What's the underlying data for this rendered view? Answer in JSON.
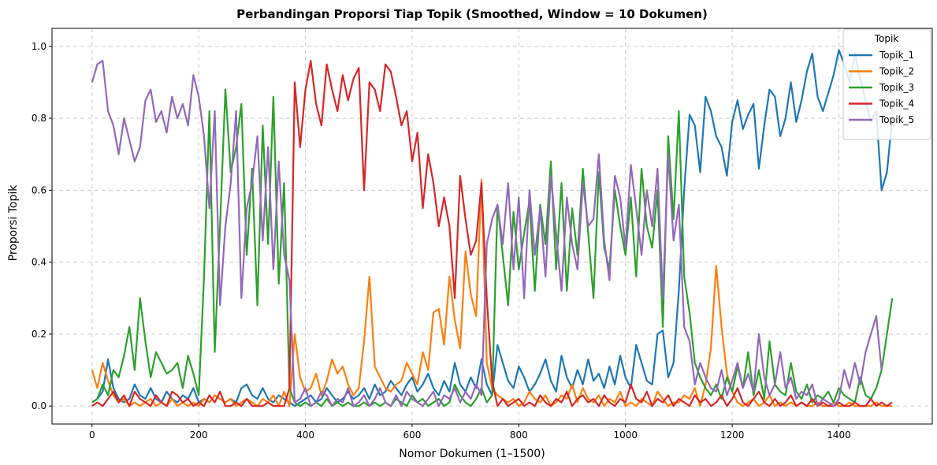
{
  "chart_data": {
    "type": "line",
    "title": "Perbandingan Proporsi Tiap Topik (Smoothed, Window = 10 Dokumen)",
    "xlabel": "Nomor Dokumen (1–1500)",
    "ylabel": "Proporsi Topik",
    "xlim": [
      -75,
      1575
    ],
    "ylim": [
      -0.05,
      1.05
    ],
    "xticks": [
      0,
      200,
      400,
      600,
      800,
      1000,
      1200,
      1400
    ],
    "yticks": [
      0.0,
      0.2,
      0.4,
      0.6,
      0.8,
      1.0
    ],
    "xtick_labels": [
      "0",
      "200",
      "400",
      "600",
      "800",
      "1000",
      "1200",
      "1400"
    ],
    "ytick_labels": [
      "0.0",
      "0.2",
      "0.4",
      "0.6",
      "0.8",
      "1.0"
    ],
    "grid": true,
    "legend_title": "Topik",
    "legend_position": "top-right",
    "sample_step": 10,
    "series": [
      {
        "name": "Topik_1",
        "color": "#1f77b4",
        "values": [
          0.01,
          0.02,
          0.04,
          0.13,
          0.05,
          0.02,
          0.01,
          0.02,
          0.06,
          0.03,
          0.02,
          0.05,
          0.02,
          0.01,
          0.04,
          0.02,
          0.01,
          0.03,
          0.02,
          0.05,
          0.01,
          0.02,
          0.01,
          0.03,
          0.02,
          0.01,
          0.02,
          0.01,
          0.05,
          0.06,
          0.03,
          0.02,
          0.05,
          0.02,
          0.01,
          0.03,
          0.02,
          0.01,
          0.0,
          0.01,
          0.02,
          0.03,
          0.01,
          0.02,
          0.05,
          0.03,
          0.01,
          0.02,
          0.04,
          0.02,
          0.03,
          0.05,
          0.02,
          0.06,
          0.03,
          0.04,
          0.07,
          0.05,
          0.03,
          0.06,
          0.08,
          0.04,
          0.06,
          0.09,
          0.05,
          0.03,
          0.07,
          0.04,
          0.12,
          0.06,
          0.04,
          0.08,
          0.05,
          0.13,
          0.06,
          0.03,
          0.17,
          0.12,
          0.07,
          0.05,
          0.11,
          0.08,
          0.04,
          0.06,
          0.09,
          0.13,
          0.07,
          0.04,
          0.14,
          0.08,
          0.05,
          0.1,
          0.06,
          0.13,
          0.07,
          0.09,
          0.05,
          0.11,
          0.06,
          0.14,
          0.08,
          0.05,
          0.17,
          0.12,
          0.07,
          0.06,
          0.2,
          0.21,
          0.08,
          0.12,
          0.32,
          0.6,
          0.81,
          0.78,
          0.65,
          0.86,
          0.82,
          0.75,
          0.72,
          0.64,
          0.79,
          0.85,
          0.77,
          0.81,
          0.84,
          0.66,
          0.78,
          0.88,
          0.86,
          0.75,
          0.8,
          0.9,
          0.79,
          0.85,
          0.93,
          0.98,
          0.86,
          0.82,
          0.87,
          0.92,
          0.99,
          0.95,
          0.9,
          0.98,
          0.91,
          0.85,
          0.79,
          0.82,
          0.6,
          0.65,
          0.8
        ]
      },
      {
        "name": "Topik_2",
        "color": "#ff7f0e",
        "values": [
          0.1,
          0.05,
          0.12,
          0.07,
          0.03,
          0.01,
          0.02,
          0.0,
          0.01,
          0.0,
          0.01,
          0.02,
          0.0,
          0.01,
          0.0,
          0.02,
          0.0,
          0.01,
          0.0,
          0.01,
          0.0,
          0.02,
          0.01,
          0.03,
          0.02,
          0.01,
          0.02,
          0.0,
          0.01,
          0.02,
          0.01,
          0.0,
          0.02,
          0.01,
          0.03,
          0.0,
          0.04,
          0.0,
          0.2,
          0.08,
          0.04,
          0.05,
          0.09,
          0.03,
          0.07,
          0.13,
          0.09,
          0.11,
          0.06,
          0.03,
          0.05,
          0.18,
          0.36,
          0.11,
          0.08,
          0.05,
          0.04,
          0.06,
          0.07,
          0.12,
          0.09,
          0.06,
          0.15,
          0.1,
          0.26,
          0.27,
          0.17,
          0.36,
          0.24,
          0.16,
          0.43,
          0.31,
          0.25,
          0.63,
          0.12,
          0.05,
          0.03,
          0.02,
          0.01,
          0.02,
          0.0,
          0.01,
          0.04,
          0.02,
          0.01,
          0.03,
          0.0,
          0.01,
          0.03,
          0.02,
          0.06,
          0.01,
          0.05,
          0.02,
          0.01,
          0.03,
          0.0,
          0.02,
          0.01,
          0.04,
          0.0,
          0.01,
          0.0,
          0.02,
          0.01,
          0.0,
          0.04,
          0.02,
          0.0,
          0.01,
          0.01,
          0.03,
          0.02,
          0.05,
          0.0,
          0.06,
          0.16,
          0.39,
          0.22,
          0.09,
          0.04,
          0.01,
          0.0,
          0.01,
          0.02,
          0.0,
          0.01,
          0.03,
          0.0,
          0.01,
          0.0,
          0.01,
          0.0,
          0.01,
          0.0,
          0.0,
          0.01,
          0.0,
          0.0,
          0.01,
          0.0,
          0.0,
          0.01,
          0.0,
          0.0,
          0.0,
          0.0,
          0.01,
          0.0,
          0.0,
          0.0
        ]
      },
      {
        "name": "Topik_3",
        "color": "#2ca02c",
        "values": [
          0.01,
          0.02,
          0.06,
          0.03,
          0.1,
          0.08,
          0.14,
          0.22,
          0.1,
          0.3,
          0.18,
          0.08,
          0.15,
          0.12,
          0.09,
          0.1,
          0.12,
          0.05,
          0.14,
          0.09,
          0.03,
          0.36,
          0.82,
          0.15,
          0.5,
          0.88,
          0.65,
          0.72,
          0.84,
          0.42,
          0.66,
          0.28,
          0.78,
          0.45,
          0.86,
          0.34,
          0.62,
          0.05,
          0.01,
          0.0,
          0.01,
          0.0,
          0.01,
          0.0,
          0.02,
          0.0,
          0.01,
          0.0,
          0.01,
          0.0,
          0.0,
          0.01,
          0.0,
          0.01,
          0.0,
          0.01,
          0.0,
          0.02,
          0.01,
          0.0,
          0.03,
          0.01,
          0.02,
          0.0,
          0.01,
          0.02,
          0.0,
          0.01,
          0.06,
          0.03,
          0.01,
          0.0,
          0.02,
          0.05,
          0.01,
          0.03,
          0.56,
          0.42,
          0.28,
          0.54,
          0.38,
          0.48,
          0.57,
          0.32,
          0.56,
          0.45,
          0.68,
          0.38,
          0.62,
          0.32,
          0.55,
          0.42,
          0.66,
          0.48,
          0.3,
          0.65,
          0.44,
          0.38,
          0.6,
          0.5,
          0.42,
          0.58,
          0.36,
          0.66,
          0.5,
          0.44,
          0.6,
          0.22,
          0.75,
          0.52,
          0.82,
          0.36,
          0.26,
          0.12,
          0.08,
          0.05,
          0.03,
          0.06,
          0.02,
          0.08,
          0.04,
          0.11,
          0.05,
          0.15,
          0.03,
          0.1,
          0.02,
          0.18,
          0.06,
          0.04,
          0.03,
          0.12,
          0.04,
          0.02,
          0.06,
          0.01,
          0.03,
          0.02,
          0.04,
          0.01,
          0.05,
          0.03,
          0.02,
          0.01,
          0.08,
          0.03,
          0.02,
          0.05,
          0.1,
          0.2,
          0.3
        ]
      },
      {
        "name": "Topik_4",
        "color": "#d62728",
        "values": [
          0.0,
          0.01,
          0.0,
          0.02,
          0.04,
          0.01,
          0.03,
          0.0,
          0.04,
          0.02,
          0.01,
          0.0,
          0.03,
          0.01,
          0.0,
          0.04,
          0.03,
          0.01,
          0.02,
          0.0,
          0.01,
          0.0,
          0.03,
          0.01,
          0.04,
          0.0,
          0.0,
          0.01,
          0.0,
          0.02,
          0.0,
          0.0,
          0.0,
          0.01,
          0.0,
          0.0,
          0.0,
          0.05,
          0.9,
          0.72,
          0.88,
          0.96,
          0.84,
          0.78,
          0.95,
          0.88,
          0.82,
          0.92,
          0.85,
          0.91,
          0.94,
          0.6,
          0.9,
          0.88,
          0.82,
          0.95,
          0.93,
          0.86,
          0.78,
          0.82,
          0.68,
          0.76,
          0.55,
          0.7,
          0.62,
          0.5,
          0.58,
          0.5,
          0.3,
          0.64,
          0.52,
          0.42,
          0.46,
          0.62,
          0.3,
          0.07,
          0.0,
          0.02,
          0.0,
          0.01,
          0.02,
          0.0,
          0.01,
          0.0,
          0.03,
          0.01,
          0.0,
          0.02,
          0.01,
          0.04,
          0.0,
          0.02,
          0.03,
          0.01,
          0.02,
          0.0,
          0.03,
          0.01,
          0.0,
          0.02,
          0.01,
          0.06,
          0.02,
          0.01,
          0.04,
          0.0,
          0.02,
          0.01,
          0.03,
          0.0,
          0.02,
          0.01,
          0.0,
          0.03,
          0.01,
          0.02,
          0.0,
          0.01,
          0.03,
          0.0,
          0.02,
          0.05,
          0.01,
          0.0,
          0.02,
          0.04,
          0.01,
          0.0,
          0.02,
          0.0,
          0.01,
          0.03,
          0.0,
          0.01,
          0.0,
          0.02,
          0.0,
          0.01,
          0.0,
          0.0,
          0.01,
          0.0,
          0.0,
          0.01,
          0.0,
          0.0,
          0.02,
          0.0,
          0.01,
          0.0,
          0.01
        ]
      },
      {
        "name": "Topik_5",
        "color": "#9467bd",
        "values": [
          0.9,
          0.95,
          0.96,
          0.82,
          0.78,
          0.7,
          0.8,
          0.74,
          0.68,
          0.72,
          0.85,
          0.88,
          0.79,
          0.82,
          0.76,
          0.86,
          0.8,
          0.84,
          0.78,
          0.92,
          0.86,
          0.75,
          0.55,
          0.82,
          0.28,
          0.5,
          0.62,
          0.82,
          0.3,
          0.55,
          0.62,
          0.75,
          0.46,
          0.72,
          0.38,
          0.68,
          0.42,
          0.35,
          0.01,
          0.02,
          0.05,
          0.0,
          0.01,
          0.04,
          0.03,
          0.0,
          0.02,
          0.01,
          0.05,
          0.0,
          0.01,
          0.03,
          0.0,
          0.02,
          0.05,
          0.01,
          0.0,
          0.03,
          0.0,
          0.04,
          0.02,
          0.01,
          0.0,
          0.02,
          0.04,
          0.0,
          0.03,
          0.02,
          0.05,
          0.01,
          0.04,
          0.02,
          0.06,
          0.03,
          0.45,
          0.52,
          0.56,
          0.45,
          0.62,
          0.38,
          0.58,
          0.3,
          0.6,
          0.42,
          0.55,
          0.36,
          0.64,
          0.48,
          0.32,
          0.58,
          0.45,
          0.38,
          0.62,
          0.5,
          0.52,
          0.7,
          0.46,
          0.35,
          0.64,
          0.58,
          0.44,
          0.67,
          0.55,
          0.42,
          0.6,
          0.5,
          0.66,
          0.3,
          0.7,
          0.46,
          0.56,
          0.22,
          0.18,
          0.06,
          0.12,
          0.08,
          0.05,
          0.04,
          0.1,
          0.03,
          0.07,
          0.12,
          0.05,
          0.09,
          0.04,
          0.2,
          0.08,
          0.03,
          0.06,
          0.15,
          0.05,
          0.08,
          0.02,
          0.04,
          0.03,
          0.06,
          0.0,
          0.02,
          0.01,
          0.0,
          0.02,
          0.1,
          0.05,
          0.12,
          0.06,
          0.15,
          0.2,
          0.25,
          0.1
        ]
      }
    ]
  }
}
